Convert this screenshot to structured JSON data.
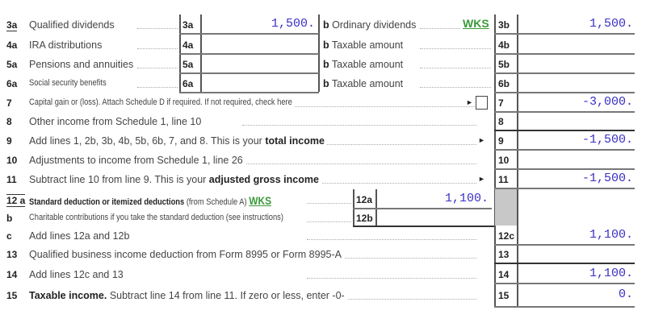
{
  "rows": [
    {
      "num": "3a",
      "text": "Qualified dividends",
      "mid_label": "3a",
      "mid_value": "1,500.",
      "b_text": "Ordinary dividends",
      "b_badge": "WKS",
      "label": "3b",
      "value": "1,500."
    },
    {
      "num": "4a",
      "text": "IRA distributions",
      "mid_label": "4a",
      "mid_value": "",
      "b_text": "Taxable amount",
      "label": "4b",
      "value": ""
    },
    {
      "num": "5a",
      "text": "Pensions and annuities",
      "mid_label": "5a",
      "mid_value": "",
      "b_text": "Taxable amount",
      "label": "5b",
      "value": ""
    },
    {
      "num": "6a",
      "text": "Social security benefits",
      "mid_label": "6a",
      "mid_value": "",
      "b_text": "Taxable amount",
      "label": "6b",
      "value": ""
    },
    {
      "num": "7",
      "text": "Capital gain or (loss). Attach Schedule D if required. If not required, check here",
      "label": "7",
      "value": "-3,000."
    },
    {
      "num": "8",
      "text": "Other income from Schedule 1, line 10",
      "label": "8",
      "value": ""
    },
    {
      "num": "9",
      "text": "Add lines 1, 2b, 3b, 4b, 5b, 6b, 7, and 8. This is your ",
      "bold": "total income",
      "label": "9",
      "value": "-1,500."
    },
    {
      "num": "10",
      "text": "Adjustments to income from Schedule 1, line 26",
      "label": "10",
      "value": ""
    },
    {
      "num": "11",
      "text": "Subtract line 10 from line 9. This is your ",
      "bold": "adjusted gross income",
      "label": "11",
      "value": "-1,500."
    },
    {
      "num": "12 a",
      "bold": "Standard deduction or itemized deductions",
      "text": " (from Schedule A)",
      "badge": "WKS",
      "mid_label": "12a",
      "mid_value": "1,100."
    },
    {
      "num": "b",
      "text": "Charitable contributions if you take the standard deduction (see instructions)",
      "mid_label": "12b",
      "mid_value": ""
    },
    {
      "num": "c",
      "text": "Add lines 12a and 12b",
      "label": "12c",
      "value": "1,100."
    },
    {
      "num": "13",
      "text": "Qualified business income deduction from Form 8995 or Form 8995-A",
      "label": "13",
      "value": ""
    },
    {
      "num": "14",
      "text": "Add lines 12c and 13",
      "label": "14",
      "value": "1,100."
    },
    {
      "num": "15",
      "bold": "Taxable income.",
      "text": " Subtract line 14 from line 11. If zero or less, enter -0-",
      "label": "15",
      "value": "0."
    }
  ],
  "b_prefix": "b",
  "arrow": "►"
}
